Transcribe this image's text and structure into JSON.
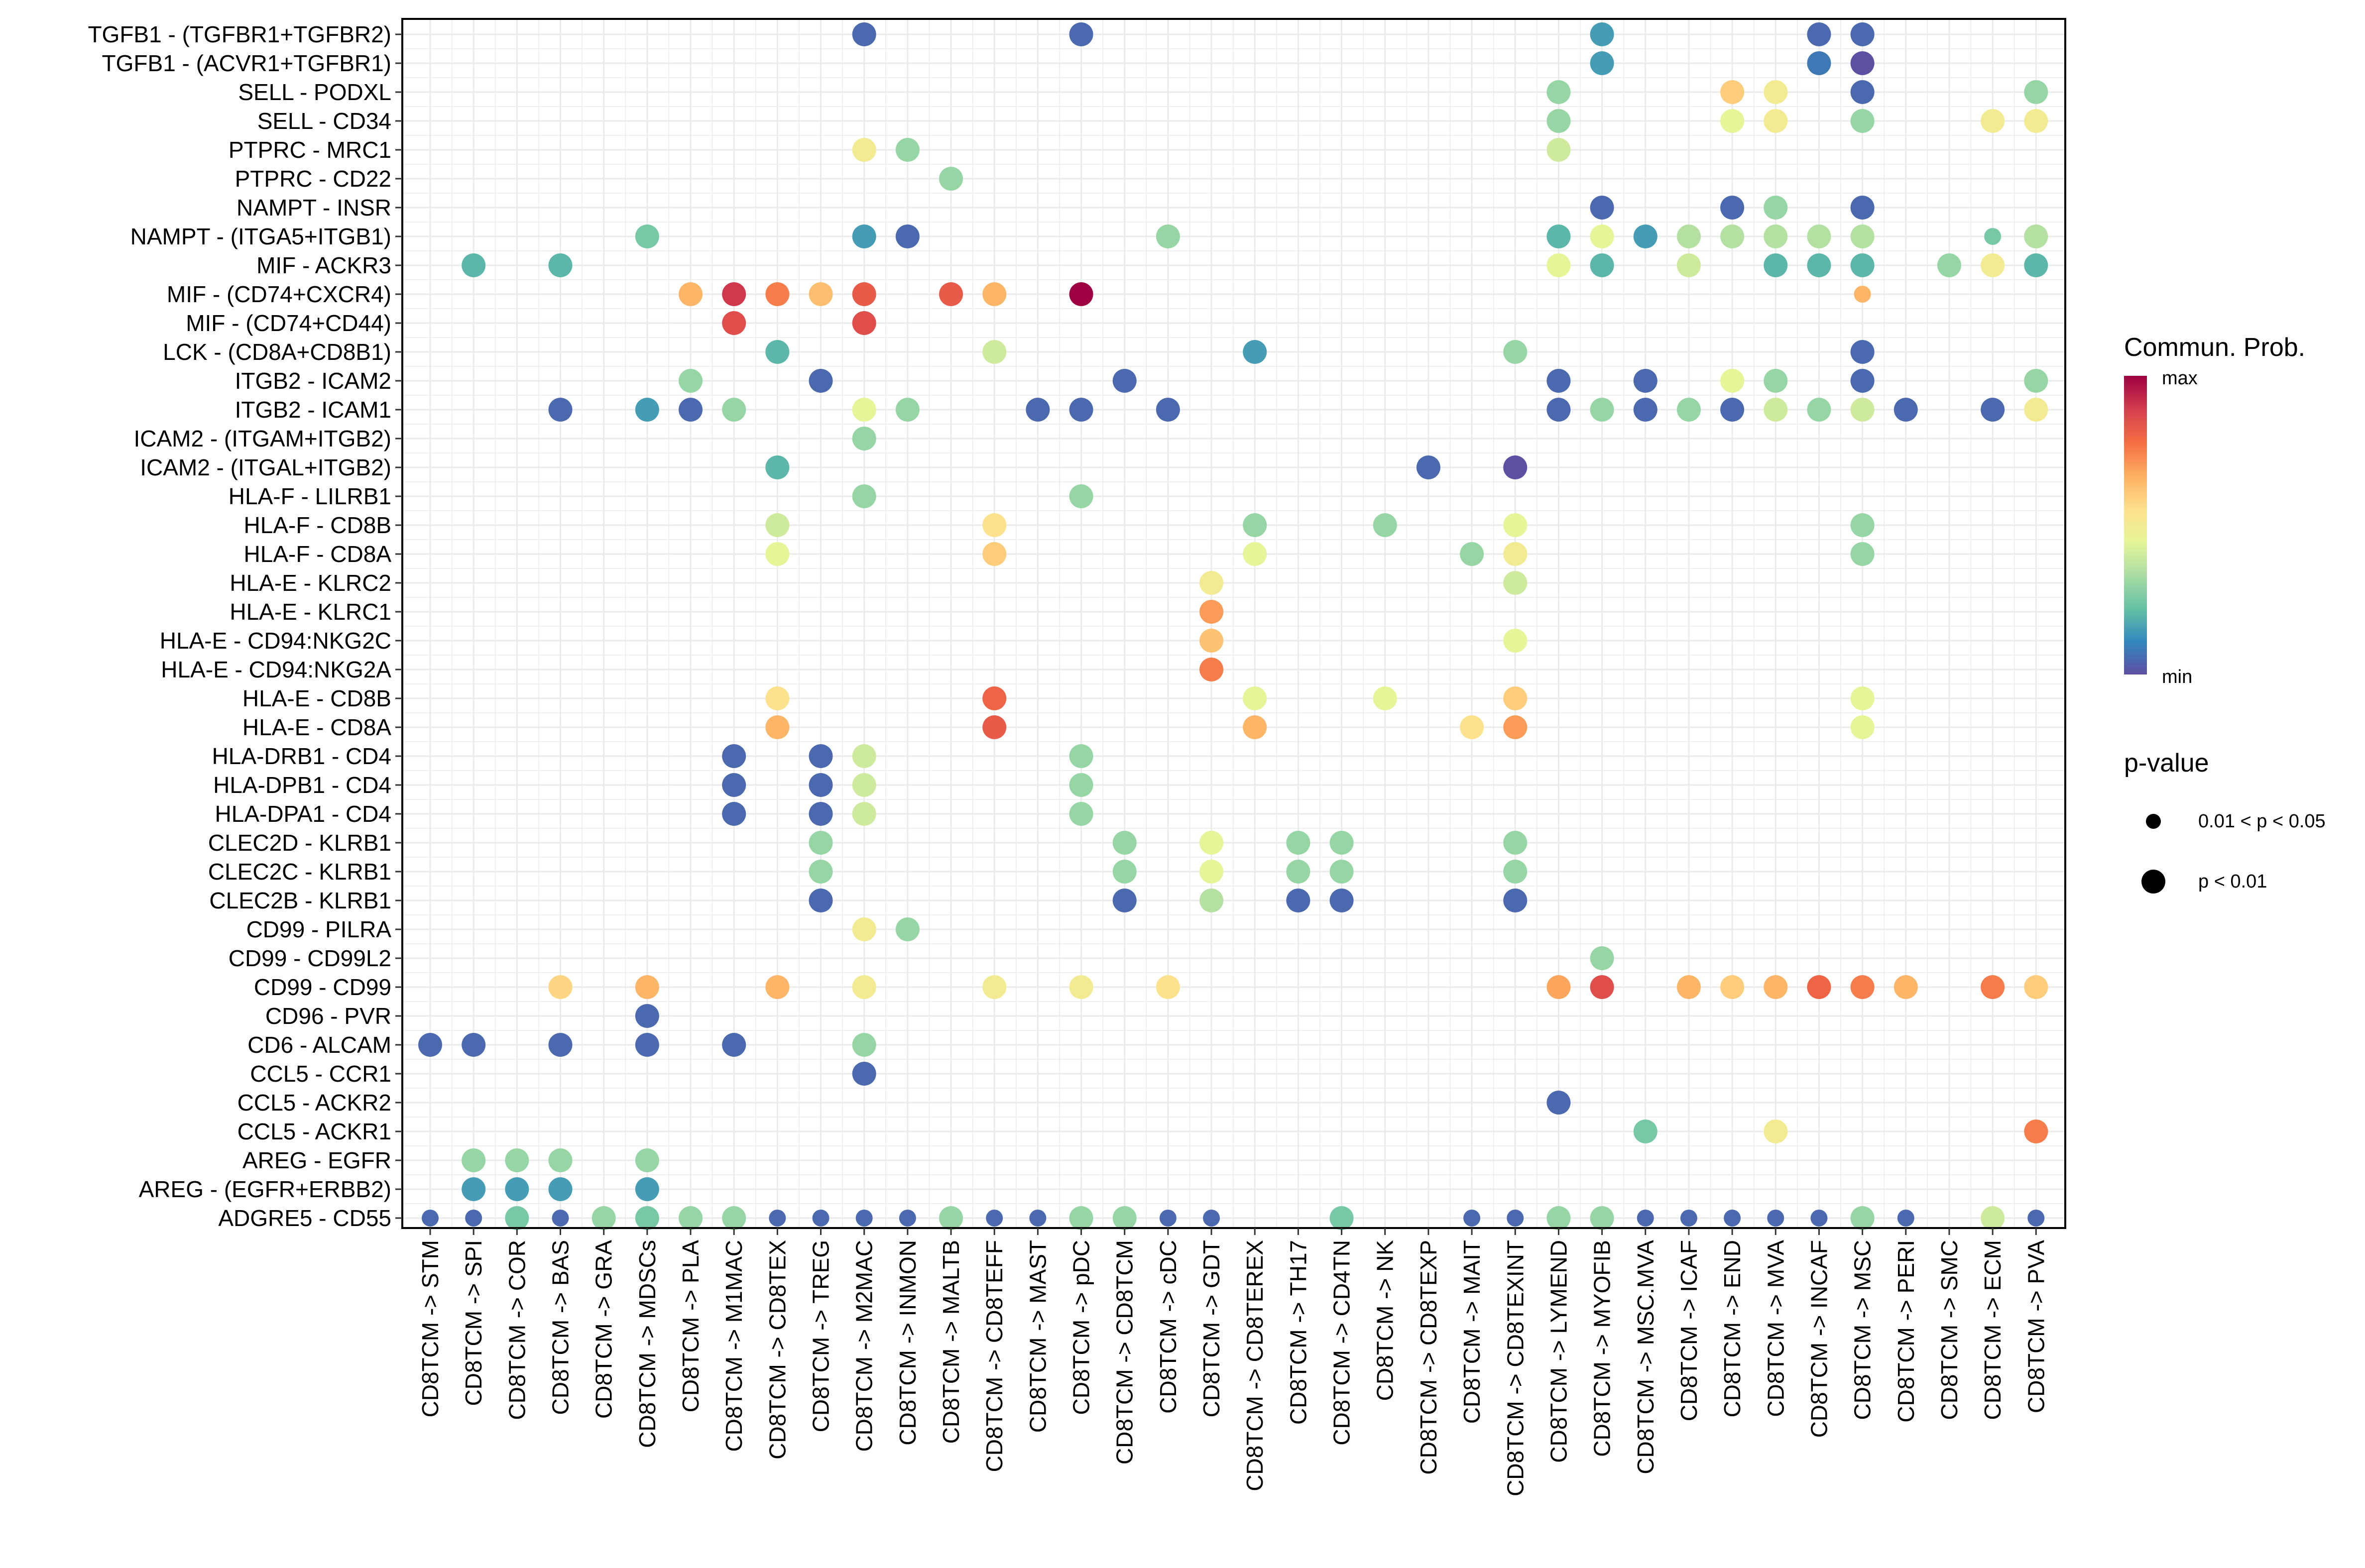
{
  "chart_data": {
    "type": "scatter",
    "subtype": "dot-plot",
    "title": "",
    "xlabel": "",
    "ylabel": "",
    "grid": true,
    "x_categories": [
      "CD8TCM -> STM",
      "CD8TCM -> SPI",
      "CD8TCM -> COR",
      "CD8TCM -> BAS",
      "CD8TCM -> GRA",
      "CD8TCM -> MDSCs",
      "CD8TCM -> PLA",
      "CD8TCM -> M1MAC",
      "CD8TCM -> CD8TEX",
      "CD8TCM -> TREG",
      "CD8TCM -> M2MAC",
      "CD8TCM -> INMON",
      "CD8TCM -> MALTB",
      "CD8TCM -> CD8TEFF",
      "CD8TCM -> MAST",
      "CD8TCM -> pDC",
      "CD8TCM -> CD8TCM",
      "CD8TCM -> cDC",
      "CD8TCM -> GDT",
      "CD8TCM -> CD8TEREX",
      "CD8TCM -> TH17",
      "CD8TCM -> CD4TN",
      "CD8TCM -> NK",
      "CD8TCM -> CD8TEXP",
      "CD8TCM -> MAIT",
      "CD8TCM -> CD8TEXINT",
      "CD8TCM -> LYMEND",
      "CD8TCM -> MYOFIB",
      "CD8TCM -> MSC.MVA",
      "CD8TCM -> ICAF",
      "CD8TCM -> END",
      "CD8TCM -> MVA",
      "CD8TCM -> INCAF",
      "CD8TCM -> MSC",
      "CD8TCM -> PERI",
      "CD8TCM -> SMC",
      "CD8TCM -> ECM",
      "CD8TCM -> PVA"
    ],
    "y_categories": [
      "TGFB1 - (TGFBR1+TGFBR2)",
      "TGFB1 - (ACVR1+TGFBR1)",
      "SELL - PODXL",
      "SELL - CD34",
      "PTPRC - MRC1",
      "PTPRC - CD22",
      "NAMPT - INSR",
      "NAMPT - (ITGA5+ITGB1)",
      "MIF - ACKR3",
      "MIF - (CD74+CXCR4)",
      "MIF - (CD74+CD44)",
      "LCK - (CD8A+CD8B1)",
      "ITGB2 - ICAM2",
      "ITGB2 - ICAM1",
      "ICAM2 - (ITGAM+ITGB2)",
      "ICAM2 - (ITGAL+ITGB2)",
      "HLA-F - LILRB1",
      "HLA-F - CD8B",
      "HLA-F - CD8A",
      "HLA-E - KLRC2",
      "HLA-E - KLRC1",
      "HLA-E - CD94:NKG2C",
      "HLA-E - CD94:NKG2A",
      "HLA-E - CD8B",
      "HLA-E - CD8A",
      "HLA-DRB1 - CD4",
      "HLA-DPB1 - CD4",
      "HLA-DPA1 - CD4",
      "CLEC2D - KLRB1",
      "CLEC2C - KLRB1",
      "CLEC2B - KLRB1",
      "CD99 - PILRA",
      "CD99 - CD99L2",
      "CD99 - CD99",
      "CD96 - PVR",
      "CD6 - ALCAM",
      "CCL5 - CCR1",
      "CCL5 - ACKR2",
      "CCL5 - ACKR1",
      "AREG - EGFR",
      "AREG - (EGFR+ERBB2)",
      "ADGRE5 - CD55"
    ],
    "prob_scale": "0 = min, 1 = max (relative communication probability)",
    "pval_codes": {
      "L": "p < 0.01",
      "S": "0.01 < p < 0.05"
    },
    "points_format": "[x_category_index, y_category_index, relative_probability, pval_code]",
    "points": [
      [
        10,
        0,
        0.05,
        "L"
      ],
      [
        15,
        0,
        0.05,
        "L"
      ],
      [
        27,
        0,
        0.15,
        "L"
      ],
      [
        32,
        0,
        0.05,
        "L"
      ],
      [
        33,
        0,
        0.05,
        "L"
      ],
      [
        27,
        1,
        0.15,
        "L"
      ],
      [
        32,
        1,
        0.08,
        "L"
      ],
      [
        33,
        1,
        0.0,
        "L"
      ],
      [
        26,
        2,
        0.3,
        "L"
      ],
      [
        30,
        2,
        0.6,
        "L"
      ],
      [
        31,
        2,
        0.5,
        "L"
      ],
      [
        33,
        2,
        0.05,
        "L"
      ],
      [
        37,
        2,
        0.3,
        "L"
      ],
      [
        26,
        3,
        0.3,
        "L"
      ],
      [
        30,
        3,
        0.45,
        "L"
      ],
      [
        31,
        3,
        0.5,
        "L"
      ],
      [
        33,
        3,
        0.3,
        "L"
      ],
      [
        36,
        3,
        0.5,
        "L"
      ],
      [
        37,
        3,
        0.5,
        "L"
      ],
      [
        10,
        4,
        0.5,
        "L"
      ],
      [
        11,
        4,
        0.3,
        "L"
      ],
      [
        26,
        4,
        0.4,
        "L"
      ],
      [
        12,
        5,
        0.3,
        "L"
      ],
      [
        27,
        6,
        0.05,
        "L"
      ],
      [
        30,
        6,
        0.05,
        "L"
      ],
      [
        31,
        6,
        0.3,
        "L"
      ],
      [
        33,
        6,
        0.05,
        "L"
      ],
      [
        5,
        7,
        0.25,
        "L"
      ],
      [
        10,
        7,
        0.15,
        "L"
      ],
      [
        11,
        7,
        0.05,
        "L"
      ],
      [
        17,
        7,
        0.3,
        "L"
      ],
      [
        26,
        7,
        0.2,
        "L"
      ],
      [
        27,
        7,
        0.45,
        "L"
      ],
      [
        28,
        7,
        0.15,
        "L"
      ],
      [
        29,
        7,
        0.35,
        "L"
      ],
      [
        30,
        7,
        0.35,
        "L"
      ],
      [
        31,
        7,
        0.35,
        "L"
      ],
      [
        32,
        7,
        0.35,
        "L"
      ],
      [
        33,
        7,
        0.35,
        "L"
      ],
      [
        36,
        7,
        0.25,
        "S"
      ],
      [
        37,
        7,
        0.35,
        "L"
      ],
      [
        1,
        8,
        0.2,
        "L"
      ],
      [
        3,
        8,
        0.2,
        "L"
      ],
      [
        26,
        8,
        0.45,
        "L"
      ],
      [
        27,
        8,
        0.2,
        "L"
      ],
      [
        29,
        8,
        0.4,
        "L"
      ],
      [
        31,
        8,
        0.2,
        "L"
      ],
      [
        32,
        8,
        0.2,
        "L"
      ],
      [
        33,
        8,
        0.2,
        "L"
      ],
      [
        35,
        8,
        0.3,
        "L"
      ],
      [
        36,
        8,
        0.5,
        "L"
      ],
      [
        37,
        8,
        0.2,
        "L"
      ],
      [
        6,
        9,
        0.65,
        "L"
      ],
      [
        7,
        9,
        0.9,
        "L"
      ],
      [
        8,
        9,
        0.75,
        "L"
      ],
      [
        9,
        9,
        0.63,
        "L"
      ],
      [
        10,
        9,
        0.82,
        "L"
      ],
      [
        12,
        9,
        0.82,
        "L"
      ],
      [
        13,
        9,
        0.65,
        "L"
      ],
      [
        15,
        9,
        1.0,
        "L"
      ],
      [
        33,
        9,
        0.65,
        "S"
      ],
      [
        7,
        10,
        0.85,
        "L"
      ],
      [
        10,
        10,
        0.85,
        "L"
      ],
      [
        8,
        11,
        0.2,
        "L"
      ],
      [
        13,
        11,
        0.4,
        "L"
      ],
      [
        19,
        11,
        0.15,
        "L"
      ],
      [
        25,
        11,
        0.3,
        "L"
      ],
      [
        33,
        11,
        0.05,
        "L"
      ],
      [
        6,
        12,
        0.3,
        "L"
      ],
      [
        9,
        12,
        0.05,
        "L"
      ],
      [
        16,
        12,
        0.05,
        "L"
      ],
      [
        26,
        12,
        0.05,
        "L"
      ],
      [
        28,
        12,
        0.05,
        "L"
      ],
      [
        30,
        12,
        0.45,
        "L"
      ],
      [
        31,
        12,
        0.3,
        "L"
      ],
      [
        33,
        12,
        0.05,
        "L"
      ],
      [
        37,
        12,
        0.3,
        "L"
      ],
      [
        3,
        13,
        0.05,
        "L"
      ],
      [
        5,
        13,
        0.15,
        "L"
      ],
      [
        6,
        13,
        0.05,
        "L"
      ],
      [
        7,
        13,
        0.3,
        "L"
      ],
      [
        10,
        13,
        0.45,
        "L"
      ],
      [
        11,
        13,
        0.3,
        "L"
      ],
      [
        14,
        13,
        0.05,
        "L"
      ],
      [
        15,
        13,
        0.05,
        "L"
      ],
      [
        17,
        13,
        0.05,
        "L"
      ],
      [
        26,
        13,
        0.05,
        "L"
      ],
      [
        27,
        13,
        0.3,
        "L"
      ],
      [
        28,
        13,
        0.05,
        "L"
      ],
      [
        29,
        13,
        0.3,
        "L"
      ],
      [
        30,
        13,
        0.05,
        "L"
      ],
      [
        31,
        13,
        0.4,
        "L"
      ],
      [
        32,
        13,
        0.3,
        "L"
      ],
      [
        33,
        13,
        0.4,
        "L"
      ],
      [
        34,
        13,
        0.05,
        "L"
      ],
      [
        36,
        13,
        0.05,
        "L"
      ],
      [
        37,
        13,
        0.5,
        "L"
      ],
      [
        10,
        14,
        0.3,
        "L"
      ],
      [
        8,
        15,
        0.2,
        "L"
      ],
      [
        23,
        15,
        0.05,
        "L"
      ],
      [
        25,
        15,
        0.0,
        "L"
      ],
      [
        10,
        16,
        0.3,
        "L"
      ],
      [
        15,
        16,
        0.3,
        "L"
      ],
      [
        8,
        17,
        0.4,
        "L"
      ],
      [
        13,
        17,
        0.55,
        "L"
      ],
      [
        19,
        17,
        0.3,
        "L"
      ],
      [
        22,
        17,
        0.3,
        "L"
      ],
      [
        25,
        17,
        0.45,
        "L"
      ],
      [
        33,
        17,
        0.3,
        "L"
      ],
      [
        8,
        18,
        0.45,
        "L"
      ],
      [
        13,
        18,
        0.6,
        "L"
      ],
      [
        19,
        18,
        0.45,
        "L"
      ],
      [
        24,
        18,
        0.3,
        "L"
      ],
      [
        25,
        18,
        0.5,
        "L"
      ],
      [
        33,
        18,
        0.3,
        "L"
      ],
      [
        18,
        19,
        0.5,
        "L"
      ],
      [
        25,
        19,
        0.4,
        "L"
      ],
      [
        18,
        20,
        0.7,
        "L"
      ],
      [
        18,
        21,
        0.62,
        "L"
      ],
      [
        25,
        21,
        0.45,
        "L"
      ],
      [
        18,
        22,
        0.75,
        "L"
      ],
      [
        8,
        23,
        0.55,
        "L"
      ],
      [
        13,
        23,
        0.8,
        "L"
      ],
      [
        19,
        23,
        0.45,
        "L"
      ],
      [
        22,
        23,
        0.45,
        "L"
      ],
      [
        25,
        23,
        0.6,
        "L"
      ],
      [
        33,
        23,
        0.45,
        "L"
      ],
      [
        8,
        24,
        0.65,
        "L"
      ],
      [
        13,
        24,
        0.82,
        "L"
      ],
      [
        19,
        24,
        0.65,
        "L"
      ],
      [
        24,
        24,
        0.55,
        "L"
      ],
      [
        25,
        24,
        0.7,
        "L"
      ],
      [
        33,
        24,
        0.45,
        "L"
      ],
      [
        7,
        25,
        0.05,
        "L"
      ],
      [
        9,
        25,
        0.05,
        "L"
      ],
      [
        10,
        25,
        0.4,
        "L"
      ],
      [
        15,
        25,
        0.3,
        "L"
      ],
      [
        7,
        26,
        0.05,
        "L"
      ],
      [
        9,
        26,
        0.05,
        "L"
      ],
      [
        10,
        26,
        0.4,
        "L"
      ],
      [
        15,
        26,
        0.3,
        "L"
      ],
      [
        7,
        27,
        0.05,
        "L"
      ],
      [
        9,
        27,
        0.05,
        "L"
      ],
      [
        10,
        27,
        0.4,
        "L"
      ],
      [
        15,
        27,
        0.3,
        "L"
      ],
      [
        9,
        28,
        0.3,
        "L"
      ],
      [
        16,
        28,
        0.3,
        "L"
      ],
      [
        18,
        28,
        0.45,
        "L"
      ],
      [
        20,
        28,
        0.3,
        "L"
      ],
      [
        21,
        28,
        0.3,
        "L"
      ],
      [
        25,
        28,
        0.3,
        "L"
      ],
      [
        9,
        29,
        0.3,
        "L"
      ],
      [
        16,
        29,
        0.3,
        "L"
      ],
      [
        18,
        29,
        0.45,
        "L"
      ],
      [
        20,
        29,
        0.3,
        "L"
      ],
      [
        21,
        29,
        0.3,
        "L"
      ],
      [
        25,
        29,
        0.3,
        "L"
      ],
      [
        9,
        30,
        0.05,
        "L"
      ],
      [
        16,
        30,
        0.05,
        "L"
      ],
      [
        18,
        30,
        0.35,
        "L"
      ],
      [
        20,
        30,
        0.05,
        "L"
      ],
      [
        21,
        30,
        0.05,
        "L"
      ],
      [
        25,
        30,
        0.05,
        "L"
      ],
      [
        10,
        31,
        0.5,
        "L"
      ],
      [
        11,
        31,
        0.3,
        "L"
      ],
      [
        27,
        32,
        0.3,
        "L"
      ],
      [
        3,
        33,
        0.58,
        "L"
      ],
      [
        5,
        33,
        0.65,
        "L"
      ],
      [
        8,
        33,
        0.65,
        "L"
      ],
      [
        10,
        33,
        0.5,
        "L"
      ],
      [
        13,
        33,
        0.5,
        "L"
      ],
      [
        15,
        33,
        0.5,
        "L"
      ],
      [
        17,
        33,
        0.55,
        "L"
      ],
      [
        26,
        33,
        0.68,
        "L"
      ],
      [
        27,
        33,
        0.85,
        "L"
      ],
      [
        29,
        33,
        0.65,
        "L"
      ],
      [
        30,
        33,
        0.6,
        "L"
      ],
      [
        31,
        33,
        0.65,
        "L"
      ],
      [
        32,
        33,
        0.8,
        "L"
      ],
      [
        33,
        33,
        0.75,
        "L"
      ],
      [
        34,
        33,
        0.65,
        "L"
      ],
      [
        36,
        33,
        0.75,
        "L"
      ],
      [
        37,
        33,
        0.6,
        "L"
      ],
      [
        5,
        34,
        0.05,
        "L"
      ],
      [
        0,
        35,
        0.05,
        "L"
      ],
      [
        1,
        35,
        0.05,
        "L"
      ],
      [
        3,
        35,
        0.05,
        "L"
      ],
      [
        5,
        35,
        0.05,
        "L"
      ],
      [
        7,
        35,
        0.05,
        "L"
      ],
      [
        10,
        35,
        0.3,
        "L"
      ],
      [
        10,
        36,
        0.05,
        "L"
      ],
      [
        26,
        37,
        0.05,
        "L"
      ],
      [
        28,
        38,
        0.25,
        "L"
      ],
      [
        31,
        38,
        0.5,
        "L"
      ],
      [
        37,
        38,
        0.75,
        "L"
      ],
      [
        1,
        39,
        0.3,
        "L"
      ],
      [
        2,
        39,
        0.3,
        "L"
      ],
      [
        3,
        39,
        0.3,
        "L"
      ],
      [
        5,
        39,
        0.3,
        "L"
      ],
      [
        1,
        40,
        0.15,
        "L"
      ],
      [
        2,
        40,
        0.15,
        "L"
      ],
      [
        3,
        40,
        0.15,
        "L"
      ],
      [
        5,
        40,
        0.15,
        "L"
      ],
      [
        0,
        41,
        0.05,
        "S"
      ],
      [
        1,
        41,
        0.05,
        "S"
      ],
      [
        2,
        41,
        0.25,
        "L"
      ],
      [
        3,
        41,
        0.05,
        "S"
      ],
      [
        4,
        41,
        0.3,
        "L"
      ],
      [
        5,
        41,
        0.25,
        "L"
      ],
      [
        6,
        41,
        0.3,
        "L"
      ],
      [
        7,
        41,
        0.3,
        "L"
      ],
      [
        8,
        41,
        0.05,
        "S"
      ],
      [
        9,
        41,
        0.05,
        "S"
      ],
      [
        10,
        41,
        0.05,
        "S"
      ],
      [
        11,
        41,
        0.05,
        "S"
      ],
      [
        12,
        41,
        0.3,
        "L"
      ],
      [
        13,
        41,
        0.05,
        "S"
      ],
      [
        14,
        41,
        0.05,
        "S"
      ],
      [
        15,
        41,
        0.3,
        "L"
      ],
      [
        16,
        41,
        0.3,
        "L"
      ],
      [
        17,
        41,
        0.05,
        "S"
      ],
      [
        18,
        41,
        0.05,
        "S"
      ],
      [
        21,
        41,
        0.25,
        "L"
      ],
      [
        24,
        41,
        0.05,
        "S"
      ],
      [
        25,
        41,
        0.05,
        "S"
      ],
      [
        26,
        41,
        0.3,
        "L"
      ],
      [
        27,
        41,
        0.3,
        "L"
      ],
      [
        28,
        41,
        0.05,
        "S"
      ],
      [
        29,
        41,
        0.05,
        "S"
      ],
      [
        30,
        41,
        0.05,
        "S"
      ],
      [
        31,
        41,
        0.05,
        "S"
      ],
      [
        32,
        41,
        0.05,
        "S"
      ],
      [
        33,
        41,
        0.3,
        "L"
      ],
      [
        34,
        41,
        0.05,
        "S"
      ],
      [
        36,
        41,
        0.4,
        "L"
      ],
      [
        37,
        41,
        0.05,
        "S"
      ]
    ],
    "colormap": [
      "#5e4fa2",
      "#3288bd",
      "#66c2a5",
      "#abdda4",
      "#e6f598",
      "#fee08b",
      "#fdae61",
      "#f46d43",
      "#d53e4f",
      "#9e0142"
    ],
    "legend_color": {
      "title": "Commun. Prob.",
      "max_label": "max",
      "min_label": "min",
      "position": "right"
    },
    "legend_size": {
      "title": "p-value",
      "entries": [
        "0.01 < p < 0.05",
        "p < 0.01"
      ],
      "position": "right"
    },
    "colors": {
      "grid": "#ebebeb",
      "panel_border": "#000000",
      "background": "#ffffff"
    }
  }
}
